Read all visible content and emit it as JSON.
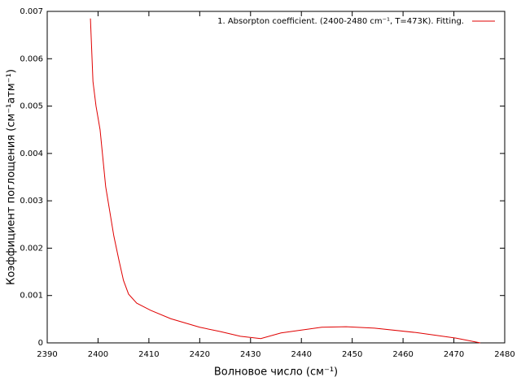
{
  "chart_data": {
    "type": "line",
    "xlabel": "Волновое число (см⁻¹)",
    "ylabel": "Коэффициент поглощения (см⁻¹атм⁻¹)",
    "xlim": [
      2390,
      2480
    ],
    "xticks": [
      2390,
      2400,
      2410,
      2420,
      2430,
      2440,
      2450,
      2460,
      2470,
      2480
    ],
    "ylim": [
      0,
      0.007
    ],
    "yticks": [
      0,
      0.001,
      0.002,
      0.003,
      0.004,
      0.005,
      0.006,
      0.007
    ],
    "grid": false,
    "legend": "top-right",
    "series": [
      {
        "name": "1. Absorpton coefficient. (2400-2480 cm⁻¹, T=473K). Fitting.",
        "color": "#e00000",
        "x": [
          2398.5,
          2399.0,
          2399.6,
          2400.4,
          2401.5,
          2403.1,
          2404.1,
          2405.0,
          2406.0,
          2407.6,
          2410.3,
          2414.3,
          2420,
          2424,
          2428,
          2432,
          2436,
          2440,
          2444,
          2448.8,
          2454.4,
          2462.4,
          2470.4,
          2475.2
        ],
        "values": [
          0.00685,
          0.00552,
          0.005,
          0.0045,
          0.0033,
          0.00226,
          0.00175,
          0.00132,
          0.00103,
          0.00084,
          0.00069,
          0.00051,
          0.00033,
          0.00024,
          0.00014,
          9e-05,
          0.00021,
          0.00027,
          0.00033,
          0.00034,
          0.00031,
          0.00022,
          0.0001,
          0.0
        ]
      }
    ]
  }
}
